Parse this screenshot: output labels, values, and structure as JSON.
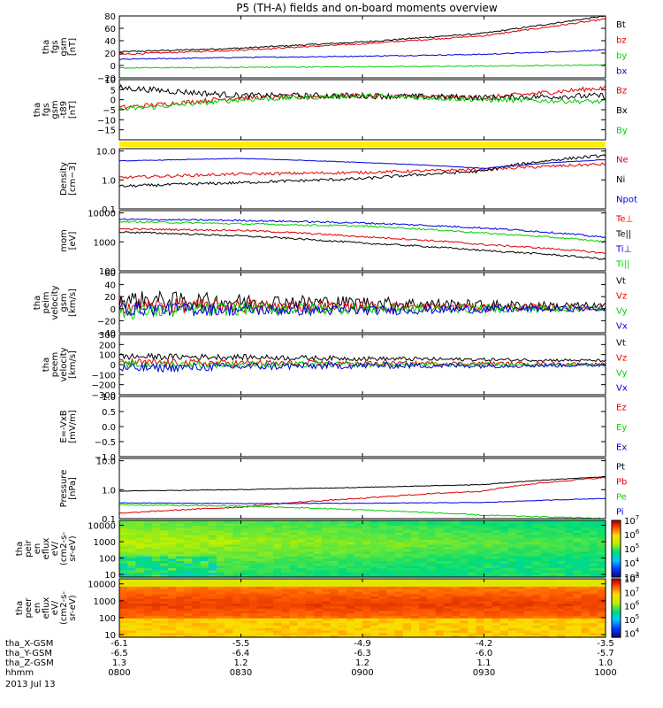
{
  "title": "P5 (TH-A) fields and on-board moments overview",
  "date_label": "2013 Jul 13",
  "footer": {
    "row_labels": [
      "tha_X-GSM",
      "tha_Y-GSM",
      "tha_Z-GSM",
      "hhmm"
    ],
    "columns": [
      [
        "-6.1",
        "-6.5",
        "1.3",
        "0800"
      ],
      [
        "-5.5",
        "-6.4",
        "1.2",
        "0830"
      ],
      [
        "-4.9",
        "-6.3",
        "1.2",
        "0900"
      ],
      [
        "-4.2",
        "-6.0",
        "1.1",
        "0930"
      ],
      [
        "-3.5",
        "-5.7",
        "1.0",
        "1000"
      ]
    ]
  },
  "colors": {
    "black": "#000000",
    "red": "#e00000",
    "green": "#00d000",
    "blue": "#0000e0",
    "yellow": "#ffee00"
  },
  "chart_data": [
    {
      "type": "line",
      "ylabel": [
        "tha",
        "fgs",
        "gsm",
        "[nT]"
      ],
      "ylim": [
        -20,
        80
      ],
      "yticks": [
        {
          "v": 80,
          "t": "80"
        },
        {
          "v": 60,
          "t": "60"
        },
        {
          "v": 40,
          "t": "40"
        },
        {
          "v": 20,
          "t": "20"
        },
        {
          "v": 0,
          "t": "0"
        },
        {
          "v": -20,
          "t": "−20"
        }
      ],
      "x_hours": [
        8.0,
        8.5,
        9.0,
        9.5,
        10.0
      ],
      "series": [
        {
          "name": "Bt",
          "color": "#000000",
          "values": [
            22,
            28,
            38,
            52,
            80
          ],
          "noise": 1.2
        },
        {
          "name": "bz",
          "color": "#e00000",
          "values": [
            18,
            25,
            35,
            48,
            75
          ],
          "noise": 1.2
        },
        {
          "name": "by",
          "color": "#0000e0",
          "values": [
            10,
            13,
            15,
            18,
            25
          ],
          "noise": 0.8
        },
        {
          "name": "bx",
          "color": "#00d000",
          "values": [
            -4,
            -3,
            -2,
            -1,
            1
          ],
          "noise": 0.8
        }
      ],
      "legend_colors": [
        "#000000",
        "#e00000",
        "#00d000",
        "#0000e0"
      ]
    },
    {
      "type": "line",
      "ylabel": [
        "tha",
        "fgs",
        "gsm",
        "-t89",
        "[nT]"
      ],
      "ylim": [
        -20,
        10
      ],
      "yticks": [
        {
          "v": 10,
          "t": "10"
        },
        {
          "v": 5,
          "t": "5"
        },
        {
          "v": 0,
          "t": "0"
        },
        {
          "v": -5,
          "t": "−5"
        },
        {
          "v": -10,
          "t": "−10"
        },
        {
          "v": -15,
          "t": "−15"
        }
      ],
      "x_hours": [
        8.0,
        8.5,
        9.0,
        9.5,
        10.0
      ],
      "series": [
        {
          "name": "Bz",
          "color": "#e00000",
          "values": [
            -4,
            1,
            2,
            1,
            6
          ],
          "noise": 1.2
        },
        {
          "name": "Bx",
          "color": "#000000",
          "values": [
            6,
            2,
            2,
            1,
            2
          ],
          "noise": 1.5
        },
        {
          "name": "By",
          "color": "#00d000",
          "values": [
            -5,
            0,
            2,
            0,
            -1
          ],
          "noise": 1.2
        }
      ],
      "legend_colors": [
        "#e00000",
        "#000000",
        "#00d000"
      ]
    },
    {
      "type": "line",
      "log": true,
      "ylabel": [
        "Density",
        "[cm−3]"
      ],
      "ylim": [
        0.1,
        12
      ],
      "yticks": [
        {
          "v": 10,
          "t": "10.0"
        },
        {
          "v": 1,
          "t": "1.0"
        },
        {
          "v": 0.1,
          "t": "0.1"
        }
      ],
      "x_hours": [
        8.0,
        8.5,
        9.0,
        9.5,
        10.0
      ],
      "series": [
        {
          "name": "Ne",
          "color": "#e00000",
          "values": [
            1.2,
            1.6,
            1.8,
            2.3,
            3.5
          ],
          "noise": 0.05
        },
        {
          "name": "Ni",
          "color": "#000000",
          "values": [
            0.6,
            0.8,
            1.1,
            2.0,
            7.0
          ],
          "noise": 0.05
        },
        {
          "name": "Npot",
          "color": "#0000e0",
          "values": [
            4.5,
            5.5,
            4.0,
            2.5,
            5.0
          ],
          "noise": 0.01
        }
      ],
      "legend_colors": [
        "#e00000",
        "#000000",
        "#0000e0"
      ]
    },
    {
      "type": "line",
      "log": true,
      "ylabel": [
        "mom",
        "[eV]"
      ],
      "ylim": [
        100,
        12000
      ],
      "yticks": [
        {
          "v": 10000,
          "t": "10000"
        },
        {
          "v": 1000,
          "t": "1000"
        },
        {
          "v": 100,
          "t": "100"
        }
      ],
      "x_hours": [
        8.0,
        8.5,
        9.0,
        9.5,
        10.0
      ],
      "series": [
        {
          "name": "Te⊥",
          "color": "#e00000",
          "values": [
            2800,
            2500,
            1500,
            800,
            400
          ],
          "noise": 0.03
        },
        {
          "name": "Te||",
          "color": "#000000",
          "values": [
            2200,
            1600,
            900,
            500,
            250
          ],
          "noise": 0.03
        },
        {
          "name": "Ti⊥",
          "color": "#0000e0",
          "values": [
            6000,
            5500,
            4500,
            3000,
            1400
          ],
          "noise": 0.03
        },
        {
          "name": "Ti||",
          "color": "#00d000",
          "values": [
            5000,
            4200,
            3500,
            2000,
            1000
          ],
          "noise": 0.03
        }
      ],
      "legend_colors": [
        "#e00000",
        "#000000",
        "#0000e0",
        "#00d000"
      ]
    },
    {
      "type": "line",
      "ylabel": [
        "tha",
        "peim",
        "velocity",
        "gsm",
        "[km/s]"
      ],
      "ylim": [
        -40,
        60
      ],
      "yticks": [
        {
          "v": 60,
          "t": "60"
        },
        {
          "v": 40,
          "t": "40"
        },
        {
          "v": 20,
          "t": "20"
        },
        {
          "v": 0,
          "t": "0"
        },
        {
          "v": -20,
          "t": "−20"
        },
        {
          "v": -40,
          "t": "−40"
        }
      ],
      "x_hours": [
        8.0,
        8.5,
        9.0,
        9.5,
        10.0
      ],
      "series": [
        {
          "name": "Vt",
          "color": "#000000",
          "values": [
            15,
            12,
            10,
            6,
            4
          ],
          "noise": 12
        },
        {
          "name": "Vz",
          "color": "#e00000",
          "values": [
            5,
            4,
            3,
            2,
            1
          ],
          "noise": 10
        },
        {
          "name": "Vy",
          "color": "#00d000",
          "values": [
            -5,
            0,
            0,
            0,
            0
          ],
          "noise": 10
        },
        {
          "name": "Vx",
          "color": "#0000e0",
          "values": [
            0,
            -2,
            -3,
            -1,
            0
          ],
          "noise": 9
        }
      ],
      "legend_colors": [
        "#000000",
        "#e00000",
        "#00d000",
        "#0000e0"
      ]
    },
    {
      "type": "line",
      "ylabel": [
        "tha",
        "peem",
        "velocity",
        "[km/s]"
      ],
      "ylim": [
        -300,
        300
      ],
      "yticks": [
        {
          "v": 300,
          "t": "300"
        },
        {
          "v": 200,
          "t": "200"
        },
        {
          "v": 100,
          "t": "100"
        },
        {
          "v": 0,
          "t": "0"
        },
        {
          "v": -100,
          "t": "−100"
        },
        {
          "v": -200,
          "t": "−200"
        },
        {
          "v": -300,
          "t": "−300"
        }
      ],
      "x_hours": [
        8.0,
        8.5,
        9.0,
        9.5,
        10.0
      ],
      "series": [
        {
          "name": "Vt",
          "color": "#000000",
          "values": [
            80,
            75,
            60,
            50,
            40
          ],
          "noise": 25
        },
        {
          "name": "Vz",
          "color": "#e00000",
          "values": [
            20,
            15,
            10,
            10,
            5
          ],
          "noise": 30
        },
        {
          "name": "Vy",
          "color": "#00d000",
          "values": [
            0,
            0,
            0,
            0,
            0
          ],
          "noise": 30
        },
        {
          "name": "Vx",
          "color": "#0000e0",
          "values": [
            -40,
            -20,
            -10,
            -10,
            -5
          ],
          "noise": 35
        }
      ],
      "legend_colors": [
        "#000000",
        "#e00000",
        "#00d000",
        "#0000e0"
      ]
    },
    {
      "type": "line",
      "ylabel": [
        "E=-VxB",
        "[mV/m]"
      ],
      "ylim": [
        -1.0,
        1.0
      ],
      "yticks": [
        {
          "v": 1.0,
          "t": "1.0"
        },
        {
          "v": 0.5,
          "t": "0.5"
        },
        {
          "v": 0.0,
          "t": "0.0"
        },
        {
          "v": -0.5,
          "t": "−0.5"
        },
        {
          "v": -1.0,
          "t": "−1.0"
        }
      ],
      "x_hours": [
        8.0,
        10.0
      ],
      "series": [
        {
          "name": "Ez",
          "color": "#e00000",
          "values": []
        },
        {
          "name": "Ey",
          "color": "#00d000",
          "values": []
        },
        {
          "name": "Ex",
          "color": "#0000e0",
          "values": []
        }
      ],
      "legend_colors": [
        "#e00000",
        "#00d000",
        "#0000e0"
      ]
    },
    {
      "type": "line",
      "log": true,
      "ylabel": [
        "Pressure",
        "[nPa]"
      ],
      "ylim": [
        0.1,
        12
      ],
      "yticks": [
        {
          "v": 10,
          "t": "10.0"
        },
        {
          "v": 1,
          "t": "1.0"
        },
        {
          "v": 0.1,
          "t": "0.1"
        }
      ],
      "x_hours": [
        8.0,
        8.5,
        9.0,
        9.5,
        10.0
      ],
      "series": [
        {
          "name": "Pt",
          "color": "#000000",
          "values": [
            0.9,
            1.0,
            1.2,
            1.5,
            2.8
          ],
          "noise": 0.01
        },
        {
          "name": "Pb",
          "color": "#e00000",
          "values": [
            0.15,
            0.25,
            0.5,
            0.9,
            2.6
          ],
          "noise": 0.02
        },
        {
          "name": "Pe",
          "color": "#00d000",
          "values": [
            0.3,
            0.27,
            0.2,
            0.13,
            0.1
          ],
          "noise": 0.02
        },
        {
          "name": "Pi",
          "color": "#0000e0",
          "values": [
            0.35,
            0.33,
            0.34,
            0.36,
            0.5
          ],
          "noise": 0.01
        }
      ],
      "legend_colors": [
        "#000000",
        "#e00000",
        "#00d000",
        "#0000e0"
      ]
    },
    {
      "type": "heatmap",
      "ylabel": [
        "tha",
        "peir",
        "en",
        "eflux",
        "eV/",
        "(cm2-s-",
        "sr-eV)"
      ],
      "y_log": true,
      "ylim": [
        7,
        20000
      ],
      "yticks": [
        {
          "v": 10000,
          "t": "10000"
        },
        {
          "v": 1000,
          "t": "1000"
        },
        {
          "v": 100,
          "t": "100"
        },
        {
          "v": 10,
          "t": "10"
        }
      ],
      "colorbar": {
        "min_exp": 3,
        "max_exp": 7,
        "labels": [
          {
            "e": 7,
            "t": "10"
          },
          {
            "e": 6,
            "t": "10"
          },
          {
            "e": 5,
            "t": "10"
          },
          {
            "e": 4,
            "t": "10"
          },
          {
            "e": 3,
            "t": "10"
          }
        ]
      }
    },
    {
      "type": "heatmap",
      "ylabel": [
        "tha",
        "peer",
        "en",
        "eflux",
        "eV/",
        "(cm2-s-",
        "sr-eV)"
      ],
      "y_log": true,
      "ylim": [
        7,
        20000
      ],
      "yticks": [
        {
          "v": 10000,
          "t": "10000"
        },
        {
          "v": 1000,
          "t": "1000"
        },
        {
          "v": 100,
          "t": "100"
        },
        {
          "v": 10,
          "t": "10"
        }
      ],
      "colorbar": {
        "min_exp": 3.7,
        "max_exp": 8,
        "labels": [
          {
            "e": 8,
            "t": "10"
          },
          {
            "e": 7,
            "t": "10"
          },
          {
            "e": 6,
            "t": "10"
          },
          {
            "e": 5,
            "t": "10"
          },
          {
            "e": 4,
            "t": "10"
          }
        ]
      }
    }
  ]
}
